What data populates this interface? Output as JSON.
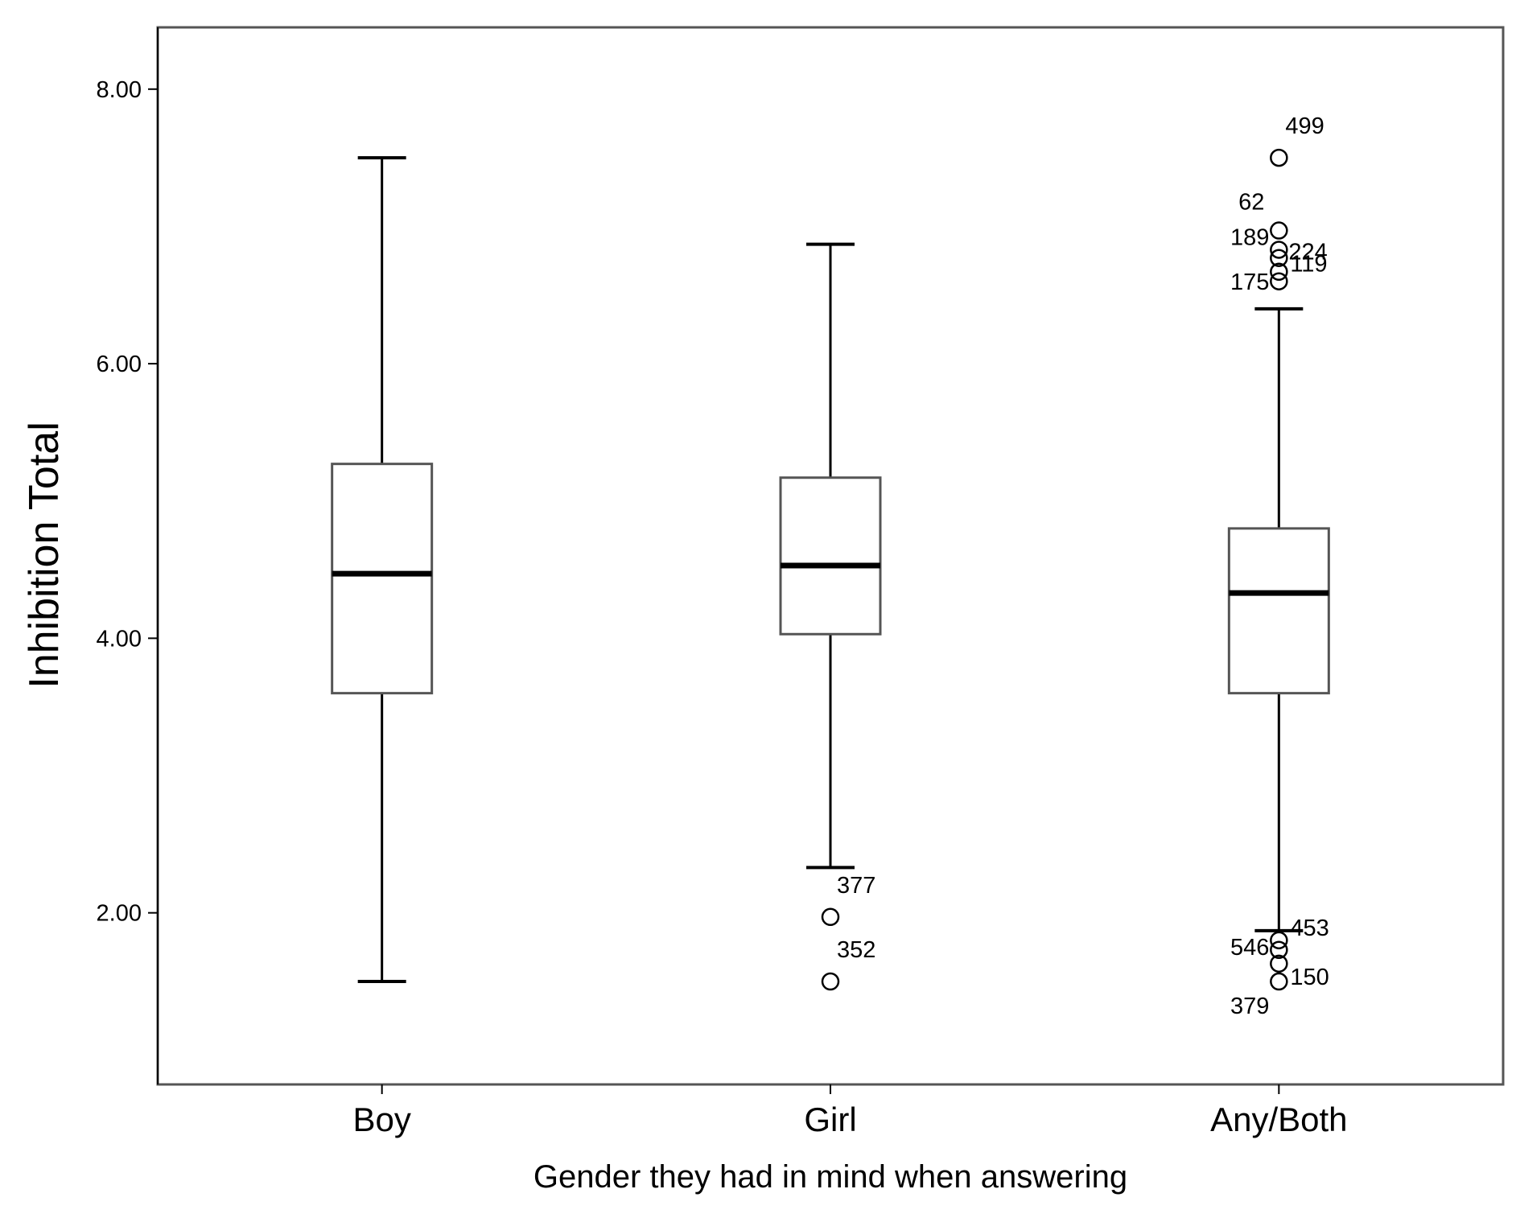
{
  "chart_data": {
    "type": "boxplot",
    "title": "",
    "xlabel": "Gender they had in mind when answering",
    "ylabel": "Inhibition Total",
    "ylim": [
      0.75,
      8.45
    ],
    "yticks": [
      "2.00",
      "4.00",
      "6.00",
      "8.00"
    ],
    "grid": false,
    "categories": [
      "Boy",
      "Girl",
      "Any/Both"
    ],
    "boxes": [
      {
        "category": "Boy",
        "whisker_low": 1.5,
        "q1": 3.6,
        "median": 4.47,
        "q3": 5.27,
        "whisker_high": 7.5,
        "outliers": []
      },
      {
        "category": "Girl",
        "whisker_low": 2.33,
        "q1": 4.03,
        "median": 4.53,
        "q3": 5.17,
        "whisker_high": 6.87,
        "outliers": [
          {
            "value": 1.97,
            "label": "377"
          },
          {
            "value": 1.5,
            "label": "352"
          }
        ]
      },
      {
        "category": "Any/Both",
        "whisker_low": 1.87,
        "q1": 3.6,
        "median": 4.33,
        "q3": 4.8,
        "whisker_high": 6.4,
        "outliers": [
          {
            "value": 7.5,
            "label": "499"
          },
          {
            "value": 6.97,
            "label": "62"
          },
          {
            "value": 6.83,
            "label": "189"
          },
          {
            "value": 6.77,
            "label": "224"
          },
          {
            "value": 6.67,
            "label": "175"
          },
          {
            "value": 6.6,
            "label": "119"
          },
          {
            "value": 1.8,
            "label": "453"
          },
          {
            "value": 1.73,
            "label": "546"
          },
          {
            "value": 1.63,
            "label": "150"
          },
          {
            "value": 1.5,
            "label": "379"
          }
        ]
      }
    ]
  },
  "colors": {
    "box_edge": "#555555",
    "whisker": "#000000",
    "median": "#000000",
    "frame": "#555555"
  }
}
